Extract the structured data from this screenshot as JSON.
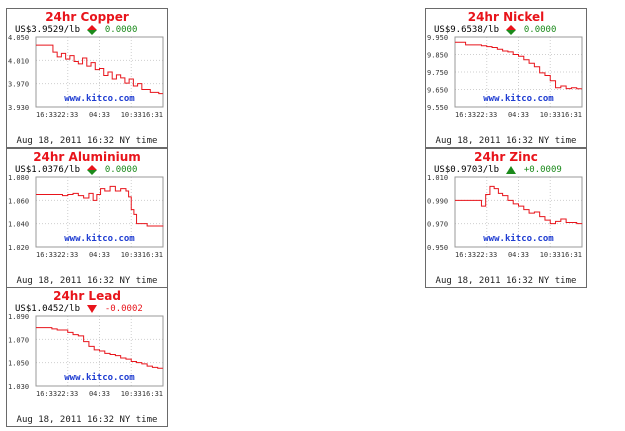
{
  "timestamp": "Aug 18, 2011 16:32 NY time",
  "watermark": "www.kitco.com",
  "colors": {
    "title": "#e8141b",
    "line": "#e8141b",
    "watermark": "#1e3cd2",
    "grid": "#cfcfcf",
    "up": "#1b8a1b",
    "down": "#e8141b",
    "neutral": "#1b8a1b"
  },
  "x_ticks": [
    "16:33",
    "22:33",
    "04:33",
    "10:33",
    "16:31"
  ],
  "metals": [
    {
      "id": "copper",
      "title": "24hr Copper",
      "price": "US$3.9529/lb",
      "change": "0.0000",
      "direction": "neutral",
      "icon": "up-down-arrows-icon",
      "chart_data": {
        "type": "line",
        "title": "24hr Copper",
        "xlabel": "",
        "ylabel": "",
        "x_ticks": [
          "16:33",
          "22:33",
          "04:33",
          "10:33",
          "16:31"
        ],
        "y_ticks": [
          "4.050",
          "4.010",
          "3.970",
          "3.930"
        ],
        "ylim": [
          3.93,
          4.05
        ],
        "grid": true,
        "x": [
          0,
          0.6,
          1.0,
          1.6,
          2.5,
          3.2,
          4.0,
          4.8,
          5.6,
          6.4,
          7.2,
          8.0,
          8.8,
          9.6,
          10.4,
          11.2,
          12.0,
          12.8,
          13.6,
          14.4,
          15.2,
          16.0,
          16.8,
          17.6,
          18.4,
          19.2,
          20.0,
          20.8,
          21.6,
          22.4,
          23.2,
          23.97
        ],
        "y": [
          4.036,
          4.036,
          4.036,
          4.036,
          4.036,
          4.024,
          4.016,
          4.022,
          4.012,
          4.018,
          4.008,
          4.004,
          4.014,
          4.0,
          4.006,
          3.994,
          3.996,
          3.984,
          3.99,
          3.978,
          3.985,
          3.98,
          3.971,
          3.978,
          3.966,
          3.97,
          3.96,
          3.96,
          3.955,
          3.955,
          3.953,
          3.953
        ]
      }
    },
    {
      "id": "nickel",
      "title": "24hr Nickel",
      "price": "US$9.6538/lb",
      "change": "0.0000",
      "direction": "neutral",
      "icon": "up-down-arrows-icon",
      "chart_data": {
        "type": "line",
        "title": "24hr Nickel",
        "xlabel": "",
        "ylabel": "",
        "x_ticks": [
          "16:33",
          "22:33",
          "04:33",
          "10:33",
          "16:31"
        ],
        "y_ticks": [
          "9.950",
          "9.850",
          "9.750",
          "9.650",
          "9.550"
        ],
        "ylim": [
          9.55,
          9.95
        ],
        "grid": true,
        "x": [
          0,
          1.0,
          2.0,
          3.0,
          4.0,
          5.0,
          6.0,
          7.0,
          8.0,
          9.0,
          10.0,
          11.0,
          12.0,
          13.0,
          14.0,
          15.0,
          16.0,
          17.0,
          18.0,
          19.0,
          20.0,
          21.0,
          22.0,
          23.0,
          23.97
        ],
        "y": [
          9.92,
          9.92,
          9.905,
          9.905,
          9.905,
          9.9,
          9.895,
          9.89,
          9.88,
          9.87,
          9.865,
          9.85,
          9.84,
          9.82,
          9.8,
          9.78,
          9.745,
          9.73,
          9.7,
          9.66,
          9.67,
          9.655,
          9.66,
          9.654,
          9.654
        ]
      }
    },
    {
      "id": "aluminium",
      "title": "24hr Aluminium",
      "price": "US$1.0376/lb",
      "change": "0.0000",
      "direction": "neutral",
      "icon": "up-down-arrows-icon",
      "chart_data": {
        "type": "line",
        "title": "24hr Aluminium",
        "xlabel": "",
        "ylabel": "",
        "x_ticks": [
          "16:33",
          "22:33",
          "04:33",
          "10:33",
          "16:31"
        ],
        "y_ticks": [
          "1.080",
          "1.060",
          "1.040",
          "1.020"
        ],
        "ylim": [
          1.02,
          1.08
        ],
        "grid": true,
        "x": [
          0,
          1.0,
          2.0,
          3.0,
          4.0,
          5.0,
          6.0,
          7.0,
          8.0,
          9.0,
          10.0,
          10.8,
          11.5,
          12.2,
          13.0,
          14.0,
          15.0,
          16.0,
          17.0,
          17.5,
          18.0,
          18.5,
          19.0,
          20.0,
          21.0,
          22.0,
          23.0,
          23.97
        ],
        "y": [
          1.065,
          1.065,
          1.065,
          1.065,
          1.065,
          1.064,
          1.065,
          1.066,
          1.064,
          1.062,
          1.066,
          1.06,
          1.065,
          1.07,
          1.068,
          1.072,
          1.068,
          1.07,
          1.068,
          1.063,
          1.052,
          1.048,
          1.04,
          1.04,
          1.038,
          1.038,
          1.038,
          1.0376
        ]
      }
    },
    {
      "id": "zinc",
      "title": "24hr Zinc",
      "price": "US$0.9703/lb",
      "change": "+0.0009",
      "direction": "up",
      "icon": "up-arrow-icon",
      "chart_data": {
        "type": "line",
        "title": "24hr Zinc",
        "xlabel": "",
        "ylabel": "",
        "x_ticks": [
          "16:33",
          "22:33",
          "04:33",
          "10:33",
          "16:31"
        ],
        "y_ticks": [
          "1.010",
          "0.990",
          "0.970",
          "0.950"
        ],
        "ylim": [
          0.95,
          1.01
        ],
        "grid": true,
        "x": [
          0,
          1.0,
          2.0,
          3.0,
          4.0,
          5.0,
          5.8,
          6.6,
          7.4,
          8.2,
          9.0,
          10.0,
          11.0,
          12.0,
          13.0,
          14.0,
          15.0,
          16.0,
          17.0,
          18.0,
          19.0,
          20.0,
          21.0,
          22.0,
          23.0,
          23.97
        ],
        "y": [
          0.99,
          0.99,
          0.99,
          0.99,
          0.99,
          0.985,
          0.995,
          1.002,
          1.0,
          0.996,
          0.994,
          0.99,
          0.987,
          0.985,
          0.982,
          0.979,
          0.98,
          0.976,
          0.973,
          0.97,
          0.972,
          0.974,
          0.971,
          0.971,
          0.97,
          0.9703
        ]
      }
    },
    {
      "id": "lead",
      "title": "24hr Lead",
      "price": "US$1.0452/lb",
      "change": "-0.0002",
      "direction": "down",
      "icon": "down-arrow-icon",
      "chart_data": {
        "type": "line",
        "title": "24hr Lead",
        "xlabel": "",
        "ylabel": "",
        "x_ticks": [
          "16:33",
          "22:33",
          "04:33",
          "10:33",
          "16:31"
        ],
        "y_ticks": [
          "1.090",
          "1.070",
          "1.050",
          "1.030"
        ],
        "ylim": [
          1.03,
          1.09
        ],
        "grid": true,
        "x": [
          0,
          1.0,
          2.0,
          3.0,
          4.0,
          5.0,
          6.0,
          7.0,
          8.0,
          9.0,
          10.0,
          11.0,
          12.0,
          13.0,
          14.0,
          15.0,
          16.0,
          17.0,
          18.0,
          19.0,
          20.0,
          21.0,
          22.0,
          23.0,
          23.97
        ],
        "y": [
          1.08,
          1.08,
          1.08,
          1.079,
          1.078,
          1.078,
          1.076,
          1.074,
          1.073,
          1.068,
          1.064,
          1.061,
          1.06,
          1.058,
          1.057,
          1.056,
          1.054,
          1.053,
          1.051,
          1.05,
          1.049,
          1.047,
          1.046,
          1.0452,
          1.0452
        ]
      }
    }
  ]
}
